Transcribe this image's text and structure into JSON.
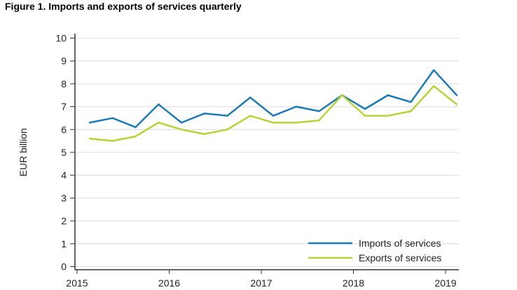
{
  "chart_data": {
    "type": "line",
    "title": "Figure 1. Imports and exports of services quarterly",
    "ylabel": "EUR billion",
    "xlabel": "",
    "ylim": [
      0,
      10
    ],
    "yticks": [
      "0",
      "1",
      "2",
      "3",
      "4",
      "5",
      "6",
      "7",
      "8",
      "9",
      "10"
    ],
    "xticks": [
      "2015",
      "2016",
      "2017",
      "2018",
      "2019"
    ],
    "x": [
      "2015Q1",
      "2015Q2",
      "2015Q3",
      "2015Q4",
      "2016Q1",
      "2016Q2",
      "2016Q3",
      "2016Q4",
      "2017Q1",
      "2017Q2",
      "2017Q3",
      "2017Q4",
      "2018Q1",
      "2018Q2",
      "2018Q3",
      "2018Q4",
      "2019Q1"
    ],
    "grid": true,
    "legend": "bottom-right",
    "series": [
      {
        "name": "Imports of services",
        "color": "#1a7ab5",
        "values": [
          6.3,
          6.5,
          6.1,
          7.1,
          6.3,
          6.7,
          6.6,
          7.4,
          6.6,
          7.0,
          6.8,
          7.5,
          6.9,
          7.5,
          7.2,
          8.6,
          7.5
        ]
      },
      {
        "name": "Exports of services",
        "color": "#b5d334",
        "values": [
          5.6,
          5.5,
          5.7,
          6.3,
          6.0,
          5.8,
          6.0,
          6.6,
          6.3,
          6.3,
          6.4,
          7.5,
          6.6,
          6.6,
          6.8,
          7.9,
          7.1
        ]
      }
    ]
  }
}
